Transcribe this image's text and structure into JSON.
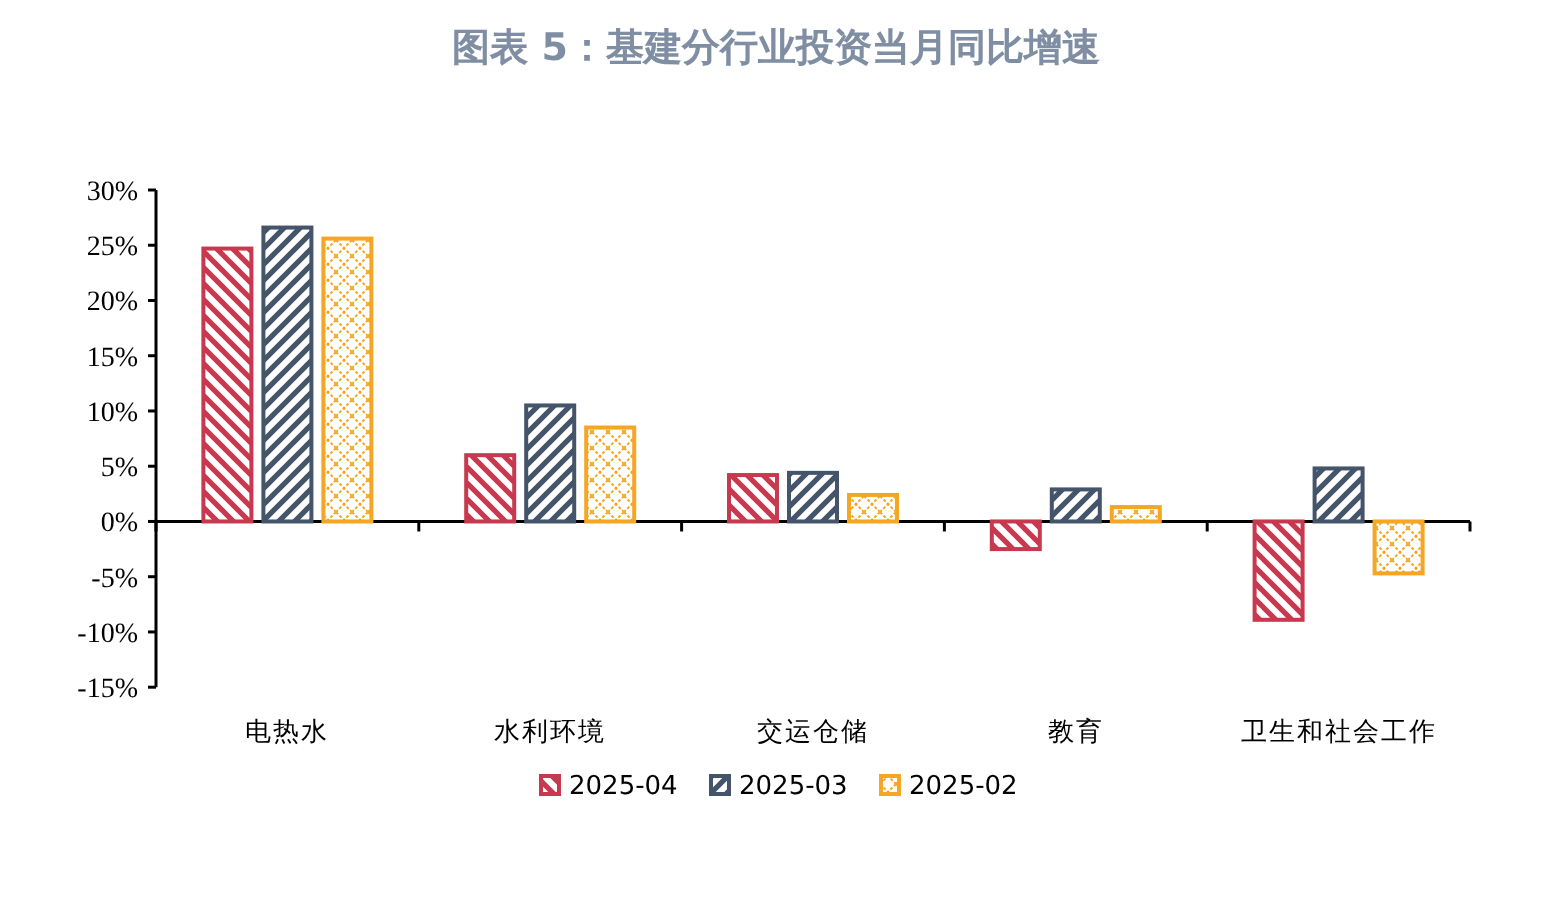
{
  "chart_data": {
    "type": "bar",
    "title": "图表 5：基建分行业投资当月同比增速",
    "categories": [
      "电热水",
      "水利环境",
      "交运仓储",
      "教育",
      "卫生和社会工作"
    ],
    "series": [
      {
        "name": "2025-04",
        "color": "#c8384e",
        "values": [
          24.7,
          6.0,
          4.2,
          -2.5,
          -8.9
        ]
      },
      {
        "name": "2025-03",
        "color": "#44546a",
        "values": [
          26.6,
          10.5,
          4.4,
          2.9,
          4.8
        ]
      },
      {
        "name": "2025-02",
        "color": "#f5a623",
        "values": [
          25.6,
          8.5,
          2.4,
          1.3,
          -4.7
        ]
      }
    ],
    "ylim": [
      -15,
      30
    ],
    "yticks": [
      {
        "value": 30,
        "label": "30%"
      },
      {
        "value": 25,
        "label": "25%"
      },
      {
        "value": 20,
        "label": "20%"
      },
      {
        "value": 15,
        "label": "15%"
      },
      {
        "value": 10,
        "label": "10%"
      },
      {
        "value": 5,
        "label": "5%"
      },
      {
        "value": 0,
        "label": "0%"
      },
      {
        "value": -5,
        "label": "-5%"
      },
      {
        "value": -10,
        "label": "-10%"
      },
      {
        "value": -15,
        "label": "-15%"
      }
    ],
    "legend": "bottom"
  }
}
